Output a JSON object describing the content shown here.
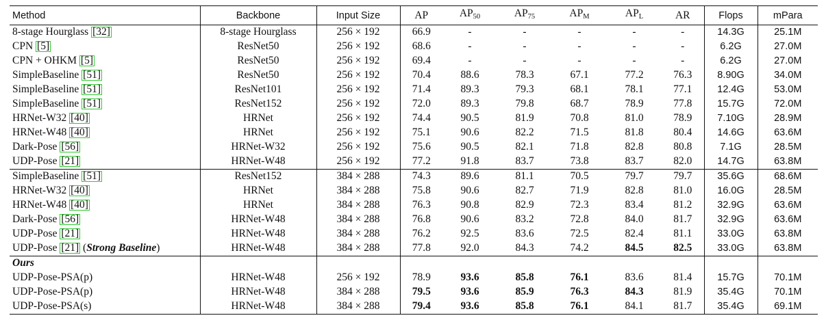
{
  "columns": [
    {
      "key": "method",
      "label": "Method",
      "sub": ""
    },
    {
      "key": "backbone",
      "label": "Backbone",
      "sub": ""
    },
    {
      "key": "input",
      "label": "Input Size",
      "sub": ""
    },
    {
      "key": "ap",
      "label": "AP",
      "sub": ""
    },
    {
      "key": "ap50",
      "label": "AP",
      "sub": "50"
    },
    {
      "key": "ap75",
      "label": "AP",
      "sub": "75"
    },
    {
      "key": "apm",
      "label": "AP",
      "sub": "M"
    },
    {
      "key": "apl",
      "label": "AP",
      "sub": "L"
    },
    {
      "key": "ar",
      "label": "AR",
      "sub": ""
    },
    {
      "key": "flops",
      "label": "Flops",
      "sub": ""
    },
    {
      "key": "mpara",
      "label": "mPara",
      "sub": ""
    }
  ],
  "groups": [
    {
      "label": "",
      "rows": [
        {
          "method": "8-stage Hourglass",
          "ref": "32",
          "note": "",
          "backbone": "8-stage Hourglass",
          "input": "256 × 192",
          "ap": "66.9",
          "ap50": "-",
          "ap75": "-",
          "apm": "-",
          "apl": "-",
          "ar": "-",
          "flops": "14.3G",
          "mpara": "25.1M",
          "bold": []
        },
        {
          "method": "CPN",
          "ref": "5",
          "note": "",
          "backbone": "ResNet50",
          "input": "256 × 192",
          "ap": "68.6",
          "ap50": "-",
          "ap75": "-",
          "apm": "-",
          "apl": "-",
          "ar": "-",
          "flops": "6.2G",
          "mpara": "27.0M",
          "bold": []
        },
        {
          "method": "CPN + OHKM",
          "ref": "5",
          "note": "",
          "backbone": "ResNet50",
          "input": "256 × 192",
          "ap": "69.4",
          "ap50": "-",
          "ap75": "-",
          "apm": "-",
          "apl": "-",
          "ar": "-",
          "flops": "6.2G",
          "mpara": "27.0M",
          "bold": []
        },
        {
          "method": "SimpleBaseline",
          "ref": "51",
          "note": "",
          "backbone": "ResNet50",
          "input": "256 × 192",
          "ap": "70.4",
          "ap50": "88.6",
          "ap75": "78.3",
          "apm": "67.1",
          "apl": "77.2",
          "ar": "76.3",
          "flops": "8.90G",
          "mpara": "34.0M",
          "bold": []
        },
        {
          "method": "SimpleBaseline",
          "ref": "51",
          "note": "",
          "backbone": "ResNet101",
          "input": "256 × 192",
          "ap": "71.4",
          "ap50": "89.3",
          "ap75": "79.3",
          "apm": "68.1",
          "apl": "78.1",
          "ar": "77.1",
          "flops": "12.4G",
          "mpara": "53.0M",
          "bold": []
        },
        {
          "method": "SimpleBaseline",
          "ref": "51",
          "note": "",
          "backbone": "ResNet152",
          "input": "256 × 192",
          "ap": "72.0",
          "ap50": "89.3",
          "ap75": "79.8",
          "apm": "68.7",
          "apl": "78.9",
          "ar": "77.8",
          "flops": "15.7G",
          "mpara": "72.0M",
          "bold": []
        },
        {
          "method": "HRNet-W32",
          "ref": "40",
          "note": "",
          "backbone": "HRNet",
          "input": "256 × 192",
          "ap": "74.4",
          "ap50": "90.5",
          "ap75": "81.9",
          "apm": "70.8",
          "apl": "81.0",
          "ar": "78.9",
          "flops": "7.10G",
          "mpara": "28.9M",
          "bold": []
        },
        {
          "method": "HRNet-W48",
          "ref": "40",
          "note": "",
          "backbone": "HRNet",
          "input": "256 × 192",
          "ap": "75.1",
          "ap50": "90.6",
          "ap75": "82.2",
          "apm": "71.5",
          "apl": "81.8",
          "ar": "80.4",
          "flops": "14.6G",
          "mpara": "63.6M",
          "bold": []
        },
        {
          "method": "Dark-Pose",
          "ref": "56",
          "note": "",
          "backbone": "HRNet-W32",
          "input": "256 × 192",
          "ap": "75.6",
          "ap50": "90.5",
          "ap75": "82.1",
          "apm": "71.8",
          "apl": "82.8",
          "ar": "80.8",
          "flops": "7.1G",
          "mpara": "28.5M",
          "bold": []
        },
        {
          "method": "UDP-Pose",
          "ref": "21",
          "note": "",
          "backbone": "HRNet-W48",
          "input": "256 × 192",
          "ap": "77.2",
          "ap50": "91.8",
          "ap75": "83.7",
          "apm": "73.8",
          "apl": "83.7",
          "ar": "82.0",
          "flops": "14.7G",
          "mpara": "63.8M",
          "bold": []
        }
      ]
    },
    {
      "label": "",
      "rows": [
        {
          "method": "SimpleBaseline",
          "ref": "51",
          "note": "",
          "backbone": "ResNet152",
          "input": "384 × 288",
          "ap": "74.3",
          "ap50": "89.6",
          "ap75": "81.1",
          "apm": "70.5",
          "apl": "79.7",
          "ar": "79.7",
          "flops": "35.6G",
          "mpara": "68.6M",
          "bold": []
        },
        {
          "method": "HRNet-W32",
          "ref": "40",
          "note": "",
          "backbone": "HRNet",
          "input": "384 × 288",
          "ap": "75.8",
          "ap50": "90.6",
          "ap75": "82.7",
          "apm": "71.9",
          "apl": "82.8",
          "ar": "81.0",
          "flops": "16.0G",
          "mpara": "28.5M",
          "bold": []
        },
        {
          "method": "HRNet-W48",
          "ref": "40",
          "note": "",
          "backbone": "HRNet",
          "input": "384 × 288",
          "ap": "76.3",
          "ap50": "90.8",
          "ap75": "82.9",
          "apm": "72.3",
          "apl": "83.4",
          "ar": "81.2",
          "flops": "32.9G",
          "mpara": "63.6M",
          "bold": []
        },
        {
          "method": "Dark-Pose",
          "ref": "56",
          "note": "",
          "backbone": "HRNet-W48",
          "input": "384 × 288",
          "ap": "76.8",
          "ap50": "90.6",
          "ap75": "83.2",
          "apm": "72.8",
          "apl": "84.0",
          "ar": "81.7",
          "flops": "32.9G",
          "mpara": "63.6M",
          "bold": []
        },
        {
          "method": "UDP-Pose",
          "ref": "21",
          "note": "",
          "backbone": "HRNet-W48",
          "input": "384 × 288",
          "ap": "76.2",
          "ap50": "92.5",
          "ap75": "83.6",
          "apm": "72.5",
          "apl": "82.4",
          "ar": "81.1",
          "flops": "33.0G",
          "mpara": "63.8M",
          "bold": []
        },
        {
          "method": "UDP-Pose",
          "ref": "21",
          "note": "Strong Baseline",
          "backbone": "HRNet-W48",
          "input": "384 × 288",
          "ap": "77.8",
          "ap50": "92.0",
          "ap75": "84.3",
          "apm": "74.2",
          "apl": "84.5",
          "ar": "82.5",
          "flops": "33.0G",
          "mpara": "63.8M",
          "bold": [
            "apl",
            "ar"
          ]
        }
      ]
    },
    {
      "label": "Ours",
      "rows": [
        {
          "method": "UDP-Pose-PSA(p)",
          "ref": "",
          "note": "",
          "backbone": "HRNet-W48",
          "input": "256 × 192",
          "ap": "78.9",
          "ap50": "93.6",
          "ap75": "85.8",
          "apm": "76.1",
          "apl": "83.6",
          "ar": "81.4",
          "flops": "15.7G",
          "mpara": "70.1M",
          "bold": [
            "ap50",
            "ap75",
            "apm"
          ]
        },
        {
          "method": "UDP-Pose-PSA(p)",
          "ref": "",
          "note": "",
          "backbone": "HRNet-W48",
          "input": "384 × 288",
          "ap": "79.5",
          "ap50": "93.6",
          "ap75": "85.9",
          "apm": "76.3",
          "apl": "84.3",
          "ar": "81.9",
          "flops": "35.4G",
          "mpara": "70.1M",
          "bold": [
            "ap",
            "ap50",
            "ap75",
            "apm",
            "apl"
          ]
        },
        {
          "method": "UDP-Pose-PSA(s)",
          "ref": "",
          "note": "",
          "backbone": "HRNet-W48",
          "input": "384 × 288",
          "ap": "79.4",
          "ap50": "93.6",
          "ap75": "85.8",
          "apm": "76.1",
          "apl": "84.1",
          "ar": "81.7",
          "flops": "35.4G",
          "mpara": "69.1M",
          "bold": [
            "ap",
            "ap50",
            "ap75",
            "apm"
          ]
        }
      ]
    }
  ]
}
